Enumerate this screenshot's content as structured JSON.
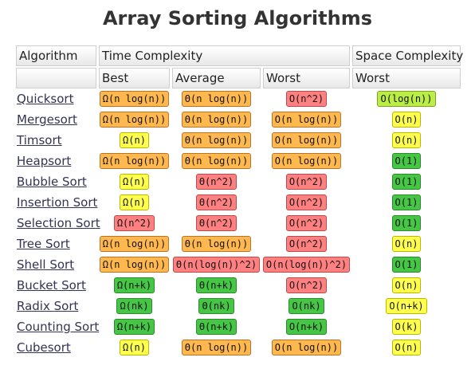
{
  "title": "Array Sorting Algorithms",
  "header": {
    "algorithm": "Algorithm",
    "time_complexity": "Time Complexity",
    "space_complexity": "Space Complexity",
    "best": "Best",
    "average": "Average",
    "worst": "Worst",
    "space_worst": "Worst"
  },
  "colors": {
    "green": "#45c645",
    "yellow": "#ffff4d",
    "orange": "#ffb84d",
    "red": "#ff8080",
    "lime": "#bbee44"
  },
  "rows": [
    {
      "name": "Quicksort",
      "best": {
        "text": "Ω(n log(n))",
        "color": "orange"
      },
      "average": {
        "text": "Θ(n log(n))",
        "color": "orange"
      },
      "worst": {
        "text": "O(n^2)",
        "color": "red"
      },
      "space": {
        "text": "O(log(n))",
        "color": "lime"
      }
    },
    {
      "name": "Mergesort",
      "best": {
        "text": "Ω(n log(n))",
        "color": "orange"
      },
      "average": {
        "text": "Θ(n log(n))",
        "color": "orange"
      },
      "worst": {
        "text": "O(n log(n))",
        "color": "orange"
      },
      "space": {
        "text": "O(n)",
        "color": "yellow"
      }
    },
    {
      "name": "Timsort",
      "best": {
        "text": "Ω(n)",
        "color": "yellow"
      },
      "average": {
        "text": "Θ(n log(n))",
        "color": "orange"
      },
      "worst": {
        "text": "O(n log(n))",
        "color": "orange"
      },
      "space": {
        "text": "O(n)",
        "color": "yellow"
      }
    },
    {
      "name": "Heapsort",
      "best": {
        "text": "Ω(n log(n))",
        "color": "orange"
      },
      "average": {
        "text": "Θ(n log(n))",
        "color": "orange"
      },
      "worst": {
        "text": "O(n log(n))",
        "color": "orange"
      },
      "space": {
        "text": "O(1)",
        "color": "green"
      }
    },
    {
      "name": "Bubble Sort",
      "best": {
        "text": "Ω(n)",
        "color": "yellow"
      },
      "average": {
        "text": "Θ(n^2)",
        "color": "red"
      },
      "worst": {
        "text": "O(n^2)",
        "color": "red"
      },
      "space": {
        "text": "O(1)",
        "color": "green"
      }
    },
    {
      "name": "Insertion Sort",
      "best": {
        "text": "Ω(n)",
        "color": "yellow"
      },
      "average": {
        "text": "Θ(n^2)",
        "color": "red"
      },
      "worst": {
        "text": "O(n^2)",
        "color": "red"
      },
      "space": {
        "text": "O(1)",
        "color": "green"
      }
    },
    {
      "name": "Selection Sort",
      "best": {
        "text": "Ω(n^2)",
        "color": "red"
      },
      "average": {
        "text": "Θ(n^2)",
        "color": "red"
      },
      "worst": {
        "text": "O(n^2)",
        "color": "red"
      },
      "space": {
        "text": "O(1)",
        "color": "green"
      }
    },
    {
      "name": "Tree Sort",
      "best": {
        "text": "Ω(n log(n))",
        "color": "orange"
      },
      "average": {
        "text": "Θ(n log(n))",
        "color": "orange"
      },
      "worst": {
        "text": "O(n^2)",
        "color": "red"
      },
      "space": {
        "text": "O(n)",
        "color": "yellow"
      }
    },
    {
      "name": "Shell Sort",
      "best": {
        "text": "Ω(n log(n))",
        "color": "orange"
      },
      "average": {
        "text": "Θ(n(log(n))^2)",
        "color": "red"
      },
      "worst": {
        "text": "O(n(log(n))^2)",
        "color": "red"
      },
      "space": {
        "text": "O(1)",
        "color": "green"
      }
    },
    {
      "name": "Bucket Sort",
      "best": {
        "text": "Ω(n+k)",
        "color": "green"
      },
      "average": {
        "text": "Θ(n+k)",
        "color": "green"
      },
      "worst": {
        "text": "O(n^2)",
        "color": "red"
      },
      "space": {
        "text": "O(n)",
        "color": "yellow"
      }
    },
    {
      "name": "Radix Sort",
      "best": {
        "text": "Ω(nk)",
        "color": "green"
      },
      "average": {
        "text": "Θ(nk)",
        "color": "green"
      },
      "worst": {
        "text": "O(nk)",
        "color": "green"
      },
      "space": {
        "text": "O(n+k)",
        "color": "yellow"
      }
    },
    {
      "name": "Counting Sort",
      "best": {
        "text": "Ω(n+k)",
        "color": "green"
      },
      "average": {
        "text": "Θ(n+k)",
        "color": "green"
      },
      "worst": {
        "text": "O(n+k)",
        "color": "green"
      },
      "space": {
        "text": "O(k)",
        "color": "yellow"
      }
    },
    {
      "name": "Cubesort",
      "best": {
        "text": "Ω(n)",
        "color": "yellow"
      },
      "average": {
        "text": "Θ(n log(n))",
        "color": "orange"
      },
      "worst": {
        "text": "O(n log(n))",
        "color": "orange"
      },
      "space": {
        "text": "O(n)",
        "color": "yellow"
      }
    }
  ]
}
